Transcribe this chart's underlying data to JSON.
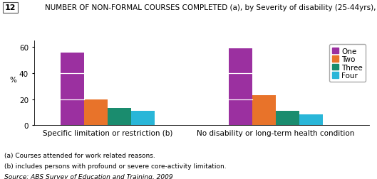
{
  "title": "NUMBER OF NON-FORMAL COURSES COMPLETED (a), by Severity of disability (25-44yrs), 2009",
  "figure_number": "12",
  "categories": [
    "Specific limitation or restriction (b)",
    "No disability or long-term health condition"
  ],
  "series": {
    "One": [
      56,
      59
    ],
    "Two": [
      20,
      23
    ],
    "Three": [
      13,
      11
    ],
    "Four": [
      11,
      8
    ]
  },
  "colors": {
    "One": "#9b30a0",
    "Two": "#e8732a",
    "Three": "#1a8c6e",
    "Four": "#29b6d8"
  },
  "ylabel": "%",
  "ylim": [
    0,
    65
  ],
  "yticks": [
    0,
    20,
    40,
    60
  ],
  "footnotes": [
    "(a) Courses attended for work related reasons.",
    "(b) includes persons with profound or severe core-activity limitation.",
    "Source: ABS Survey of Education and Training, 2009"
  ],
  "bar_width": 0.07,
  "group_centers": [
    0.22,
    0.72
  ],
  "bg_color": "#ffffff",
  "title_fontsize": 7.5,
  "axis_fontsize": 7.5,
  "legend_fontsize": 7.5,
  "footnote_fontsize": 6.5
}
